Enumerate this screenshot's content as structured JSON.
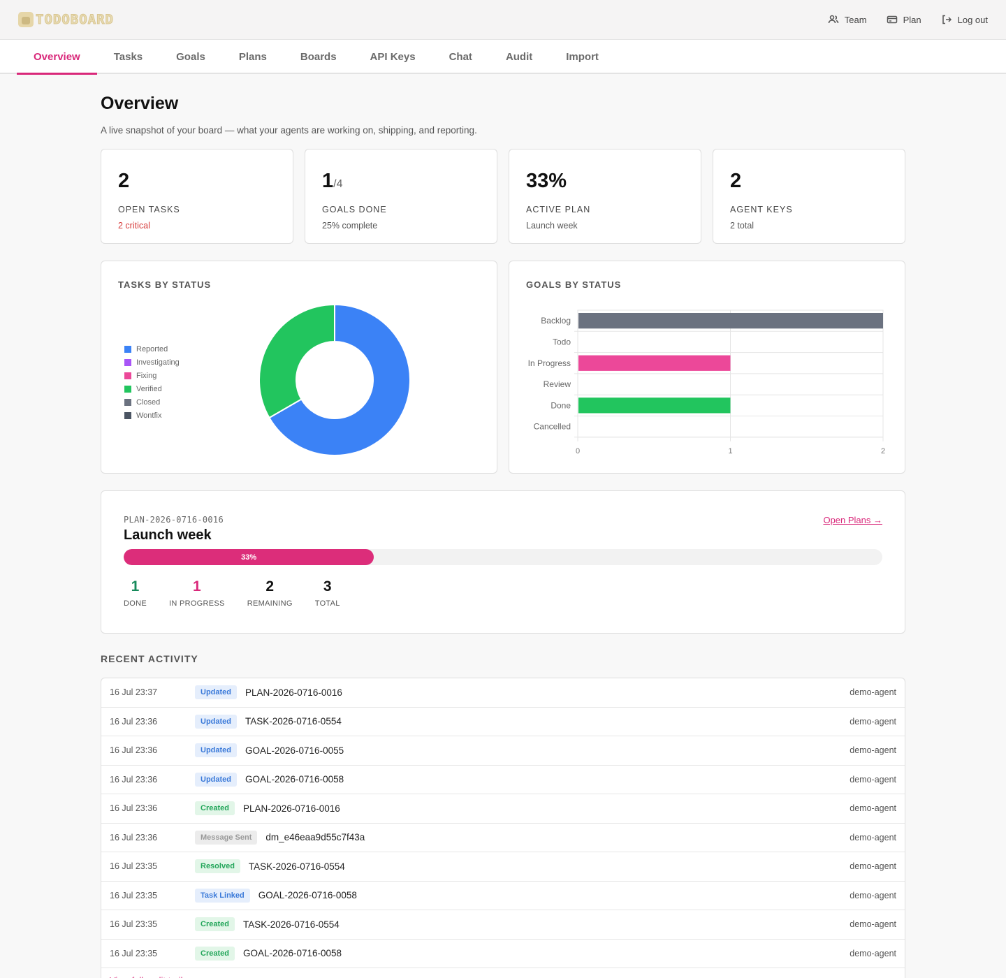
{
  "brand": {
    "name": "TODOBOARD"
  },
  "topbar": {
    "actions": [
      {
        "label": "Team",
        "icon": "team-icon"
      },
      {
        "label": "Plan",
        "icon": "credit-card-icon"
      },
      {
        "label": "Log out",
        "icon": "logout-icon"
      }
    ]
  },
  "tabs": [
    "Overview",
    "Tasks",
    "Goals",
    "Plans",
    "Boards",
    "API Keys",
    "Chat",
    "Audit",
    "Import"
  ],
  "active_tab": "Overview",
  "page": {
    "title": "Overview",
    "subtitle": "A live snapshot of your board — what your agents are working on, shipping, and reporting."
  },
  "stats": [
    {
      "value": "2",
      "denom": "",
      "label": "Open Tasks",
      "note": "2 critical",
      "note_style": "critical"
    },
    {
      "value": "1",
      "denom": "/4",
      "label": "Goals Done",
      "note": "25% complete",
      "note_style": ""
    },
    {
      "value": "33%",
      "denom": "",
      "label": "Active Plan",
      "note": "Launch week",
      "note_style": ""
    },
    {
      "value": "2",
      "denom": "",
      "label": "Agent Keys",
      "note": "2 total",
      "note_style": ""
    }
  ],
  "chart_data": [
    {
      "type": "pie",
      "title": "Tasks by Status",
      "variant": "donut",
      "legend_position": "left",
      "labels": [
        "Reported",
        "Investigating",
        "Fixing",
        "Verified",
        "Closed",
        "Wontfix"
      ],
      "values": [
        2,
        0,
        0,
        1,
        0,
        0
      ],
      "colors": [
        "#3b82f6",
        "#a855f7",
        "#ec4899",
        "#22c55e",
        "#6b7280",
        "#4b5563"
      ]
    },
    {
      "type": "bar",
      "orientation": "horizontal",
      "title": "Goals by Status",
      "categories": [
        "Backlog",
        "Todo",
        "In Progress",
        "Review",
        "Done",
        "Cancelled"
      ],
      "values": [
        2,
        0,
        1,
        0,
        1,
        0
      ],
      "colors": [
        "#6b7280",
        "#3b82f6",
        "#ec4899",
        "#a855f7",
        "#22c55e",
        "#9ca3af"
      ],
      "xlim": [
        0,
        2
      ],
      "ticks": [
        "0",
        "1",
        "2"
      ],
      "grid": true
    }
  ],
  "plan": {
    "id": "PLAN-2026-0716-0016",
    "name": "Launch week",
    "link_label": "Open Plans →",
    "progress": 0.33,
    "progress_label": "33%",
    "stats": [
      {
        "value": "1",
        "label": "DONE",
        "style": "green"
      },
      {
        "value": "1",
        "label": "IN PROGRESS",
        "style": "pink"
      },
      {
        "value": "2",
        "label": "REMAINING",
        "style": ""
      },
      {
        "value": "3",
        "label": "TOTAL",
        "style": ""
      }
    ]
  },
  "activity": {
    "title": "Recent Activity",
    "view_all": "View full audit trail →",
    "rows": [
      {
        "time": "16 Jul 23:37",
        "action": "Updated",
        "kind": "updated",
        "target": "PLAN-2026-0716-0016",
        "actor": "demo-agent"
      },
      {
        "time": "16 Jul 23:36",
        "action": "Updated",
        "kind": "updated",
        "target": "TASK-2026-0716-0554",
        "actor": "demo-agent"
      },
      {
        "time": "16 Jul 23:36",
        "action": "Updated",
        "kind": "updated",
        "target": "GOAL-2026-0716-0055",
        "actor": "demo-agent"
      },
      {
        "time": "16 Jul 23:36",
        "action": "Updated",
        "kind": "updated",
        "target": "GOAL-2026-0716-0058",
        "actor": "demo-agent"
      },
      {
        "time": "16 Jul 23:36",
        "action": "Created",
        "kind": "created",
        "target": "PLAN-2026-0716-0016",
        "actor": "demo-agent"
      },
      {
        "time": "16 Jul 23:36",
        "action": "Message Sent",
        "kind": "message",
        "target": "dm_e46eaa9d55c7f43a",
        "actor": "demo-agent"
      },
      {
        "time": "16 Jul 23:35",
        "action": "Resolved",
        "kind": "resolved",
        "target": "TASK-2026-0716-0554",
        "actor": "demo-agent"
      },
      {
        "time": "16 Jul 23:35",
        "action": "Task Linked",
        "kind": "linked",
        "target": "GOAL-2026-0716-0058",
        "actor": "demo-agent"
      },
      {
        "time": "16 Jul 23:35",
        "action": "Created",
        "kind": "created",
        "target": "TASK-2026-0716-0554",
        "actor": "demo-agent"
      },
      {
        "time": "16 Jul 23:35",
        "action": "Created",
        "kind": "created",
        "target": "GOAL-2026-0716-0058",
        "actor": "demo-agent"
      }
    ]
  }
}
